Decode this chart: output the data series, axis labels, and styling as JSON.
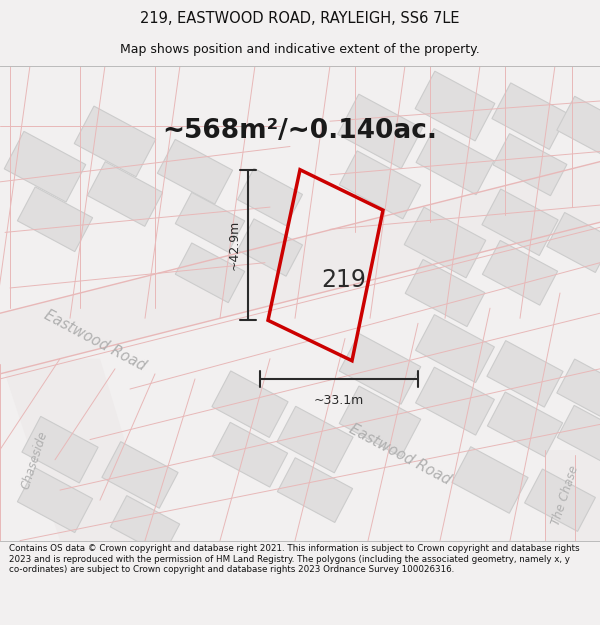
{
  "title": "219, EASTWOOD ROAD, RAYLEIGH, SS6 7LE",
  "subtitle": "Map shows position and indicative extent of the property.",
  "area_text": "~568m²/~0.140ac.",
  "label_219": "219",
  "dim_height": "~42.9m",
  "dim_width": "~33.1m",
  "footer": "Contains OS data © Crown copyright and database right 2021. This information is subject to Crown copyright and database rights 2023 and is reproduced with the permission of HM Land Registry. The polygons (including the associated geometry, namely x, y co-ordinates) are subject to Crown copyright and database rights 2023 Ordnance Survey 100026316.",
  "bg_color": "#f2f0f0",
  "map_bg": "#f7f5f5",
  "road_line_color": "#e8b8b8",
  "building_color": "#e0dede",
  "building_edge": "#cccccc",
  "road_fill": "#eeebeb",
  "red_line": "#cc0000",
  "dark_line": "#2a2a2a",
  "title_color": "#111111",
  "footer_color": "#111111",
  "road_label_color": "#b0b0b0",
  "area_text_color": "#1a1a1a"
}
